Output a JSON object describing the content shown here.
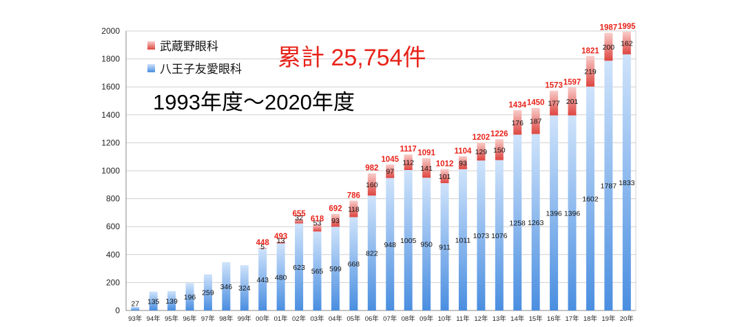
{
  "chart_data": {
    "type": "bar",
    "stacked": true,
    "categories": [
      "93年",
      "94年",
      "95年",
      "96年",
      "97年",
      "98年",
      "99年",
      "00年",
      "01年",
      "02年",
      "03年",
      "04年",
      "05年",
      "06年",
      "07年",
      "08年",
      "09年",
      "10年",
      "11年",
      "12年",
      "13年",
      "14年",
      "15年",
      "16年",
      "17年",
      "18年",
      "19年",
      "20年"
    ],
    "series": [
      {
        "name": "八王子友愛眼科",
        "color": "#5b9be6",
        "values": [
          27,
          135,
          139,
          196,
          259,
          346,
          324,
          443,
          480,
          623,
          565,
          599,
          668,
          822,
          948,
          1005,
          950,
          911,
          1011,
          1073,
          1076,
          1258,
          1263,
          1396,
          1396,
          1602,
          1787,
          1833
        ]
      },
      {
        "name": "武蔵野眼科",
        "color": "#e86a6a",
        "values": [
          0,
          0,
          0,
          0,
          0,
          0,
          0,
          5,
          13,
          32,
          53,
          93,
          118,
          160,
          97,
          112,
          141,
          101,
          93,
          129,
          150,
          176,
          187,
          177,
          201,
          219,
          200,
          162
        ]
      }
    ],
    "value_labels_bottom": [
      "27",
      "135",
      "139",
      "196",
      "259",
      "346",
      "324",
      "443",
      "480",
      "623",
      "565",
      "599",
      "668",
      "822",
      "948",
      "1005",
      "950",
      "911",
      "1011",
      "1073",
      "1076",
      "1258",
      "1263",
      "1396",
      "1396",
      "1602",
      "1787",
      "1833"
    ],
    "value_labels_top": [
      "",
      "",
      "",
      "",
      "",
      "",
      "",
      "5",
      "13",
      "32",
      "53",
      "93",
      "118",
      "160",
      "97",
      "112",
      "141",
      "101",
      "93",
      "129",
      "150",
      "176",
      "187",
      "177",
      "201",
      "219",
      "200",
      "162"
    ],
    "totals": [
      "",
      "",
      "",
      "",
      "",
      "",
      "",
      "448",
      "493",
      "655",
      "618",
      "692",
      "786",
      "982",
      "1045",
      "1117",
      "1091",
      "1012",
      "1104",
      "1202",
      "1226",
      "1434",
      "1450",
      "1573",
      "1597",
      "1821",
      "1987",
      "1995"
    ],
    "ylim": [
      0,
      2000
    ],
    "yticks": [
      "0",
      "200",
      "400",
      "600",
      "800",
      "1000",
      "1200",
      "1400",
      "1600",
      "1800",
      "2000"
    ],
    "grid": true,
    "legend_placement": "top-left",
    "title": "",
    "xlabel": "",
    "ylabel": ""
  },
  "annotations": {
    "total_label": "累計 25,754件",
    "period_label": "1993年度～2020年度"
  },
  "colors": {
    "blue_light": "#c6ddfa",
    "blue_dark": "#4d8fe0",
    "red_light": "#f7c3c0",
    "red_dark": "#e04a45",
    "total_text": "#e8231a"
  }
}
